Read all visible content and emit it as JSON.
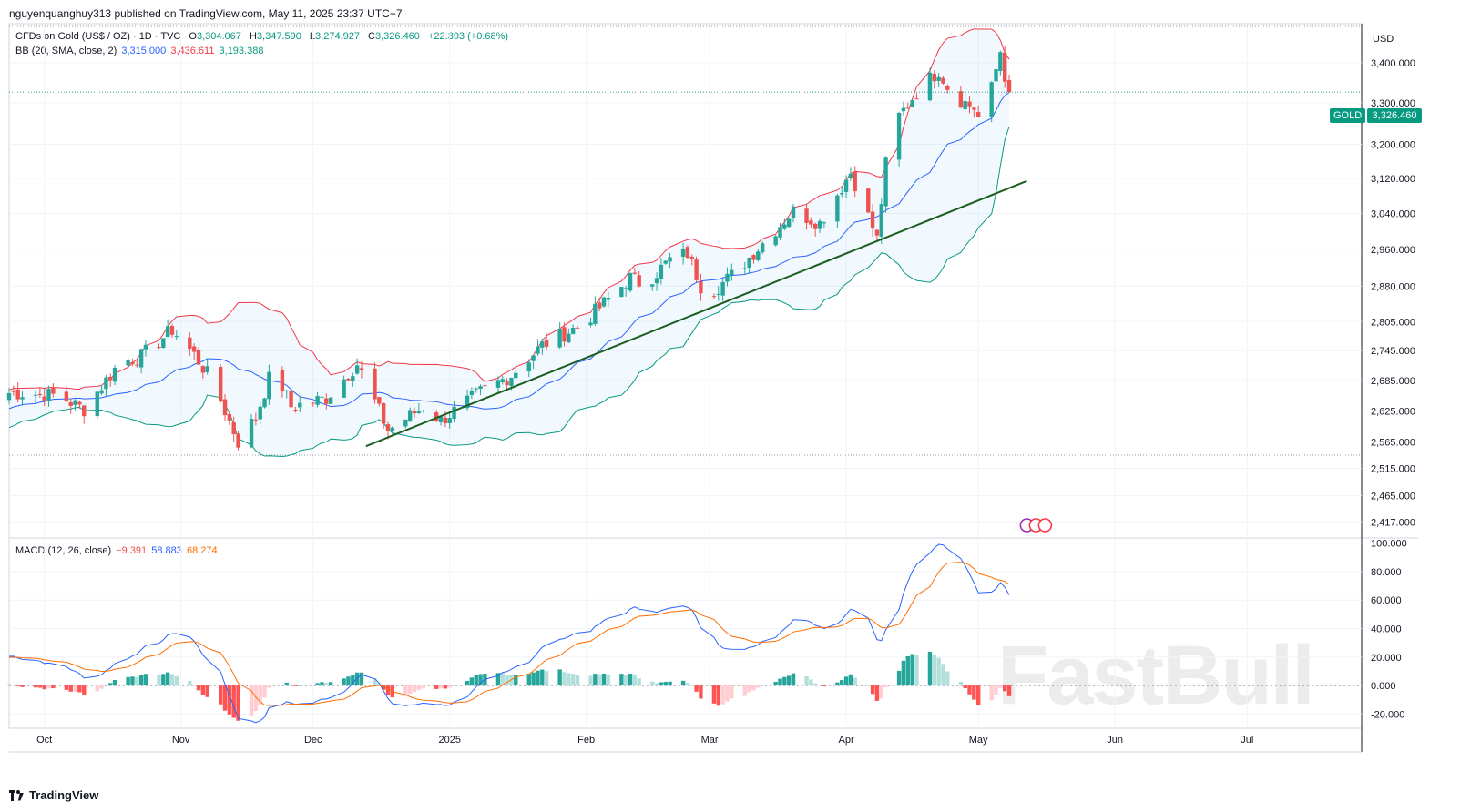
{
  "header": {
    "publisher": "nguyenquanghuy313 published on TradingView.com, May 11, 2025 23:37 UTC+7"
  },
  "legend_main": {
    "symbol": "CFDs on Gold (US$ / OZ) · 1D · TVC",
    "o_label": "O",
    "o_value": "3,304.067",
    "h_label": "H",
    "h_value": "3,347.590",
    "l_label": "L",
    "l_value": "3,274.927",
    "c_label": "C",
    "c_value": "3,326.460",
    "change": "+22.393 (+0.68%)"
  },
  "legend_bb": {
    "label": "BB (20, SMA, close, 2)",
    "basis": "3,315.000",
    "upper": "3,436.611",
    "lower": "3,193.388"
  },
  "legend_macd": {
    "label": "MACD (12, 26, close)",
    "hist": "−9.391",
    "macd": "58.883",
    "signal": "68.274"
  },
  "currency": "USD",
  "price_badge": {
    "symbol": "GOLD",
    "value": "3,326.460"
  },
  "footer": {
    "brand": "TradingView"
  },
  "watermark": "FastBull",
  "colors": {
    "up": "#26a69a",
    "down": "#ef5350",
    "upper": "#f23645",
    "lower": "#089981",
    "basis": "#2962ff",
    "macd": "#2962ff",
    "signal": "#ff6d00",
    "trend": "#1b5e20"
  },
  "chart_data": [
    {
      "type": "candlestick",
      "title": "CFDs on Gold (US$ / OZ) · 1D · TVC",
      "y_axis_ticks": [
        "3,400.000",
        "3,300.000",
        "3,200.000",
        "3,120.000",
        "3,040.000",
        "2,960.000",
        "2,880.000",
        "2,805.000",
        "2,745.000",
        "2,685.000",
        "2,625.000",
        "2,565.000",
        "2,515.000",
        "2,465.000",
        "2,417.000"
      ],
      "x_axis_ticks": [
        "Oct",
        "Nov",
        "Dec",
        "2025",
        "Feb",
        "Mar",
        "Apr",
        "May",
        "Jun",
        "Jul"
      ],
      "ylim": [
        2390,
        3500
      ],
      "scale": "log",
      "last_close": 3326.46,
      "anchors": [
        {
          "date": "Sep 26",
          "close": 2660
        },
        {
          "date": "Oct 4",
          "close": 2655
        },
        {
          "date": "Oct 10",
          "close": 2628
        },
        {
          "date": "Oct 18",
          "close": 2720
        },
        {
          "date": "Oct 23",
          "close": 2734
        },
        {
          "date": "Oct 30",
          "close": 2788
        },
        {
          "date": "Nov 4",
          "close": 2737
        },
        {
          "date": "Nov 8",
          "close": 2685
        },
        {
          "date": "Nov 14",
          "close": 2565
        },
        {
          "date": "Nov 18",
          "close": 2613
        },
        {
          "date": "Nov 22",
          "close": 2713
        },
        {
          "date": "Nov 26",
          "close": 2633
        },
        {
          "date": "Dec 4",
          "close": 2650
        },
        {
          "date": "Dec 11",
          "close": 2718
        },
        {
          "date": "Dec 18",
          "close": 2587
        },
        {
          "date": "Dec 26",
          "close": 2633
        },
        {
          "date": "Dec 30",
          "close": 2606
        },
        {
          "date": "Jan 8",
          "close": 2662
        },
        {
          "date": "Jan 15",
          "close": 2696
        },
        {
          "date": "Jan 22",
          "close": 2756
        },
        {
          "date": "Jan 31",
          "close": 2799
        },
        {
          "date": "Feb 7",
          "close": 2861
        },
        {
          "date": "Feb 11",
          "close": 2898
        },
        {
          "date": "Feb 14",
          "close": 2882
        },
        {
          "date": "Feb 20",
          "close": 2937
        },
        {
          "date": "Feb 24",
          "close": 2951
        },
        {
          "date": "Feb 28",
          "close": 2857
        },
        {
          "date": "Mar 7",
          "close": 2910
        },
        {
          "date": "Mar 14",
          "close": 2984
        },
        {
          "date": "Mar 20",
          "close": 3045
        },
        {
          "date": "Mar 26",
          "close": 3018
        },
        {
          "date": "Apr 2",
          "close": 3134
        },
        {
          "date": "Apr 8",
          "close": 2982
        },
        {
          "date": "Apr 11",
          "close": 3237
        },
        {
          "date": "Apr 17",
          "close": 3327
        },
        {
          "date": "Apr 22",
          "close": 3381
        },
        {
          "date": "Apr 25",
          "close": 3319
        },
        {
          "date": "Apr 30",
          "close": 3288
        },
        {
          "date": "May 2",
          "close": 3240
        },
        {
          "date": "May 6",
          "close": 3430
        },
        {
          "date": "May 8",
          "close": 3305
        },
        {
          "date": "May 9",
          "close": 3326.46
        }
      ]
    },
    {
      "type": "line",
      "title": "MACD (12, 26, close)",
      "y_axis_ticks": [
        "100.000",
        "80.000",
        "60.000",
        "40.000",
        "20.000",
        "0.000",
        "-20.000"
      ],
      "ylim": [
        -30,
        103
      ],
      "series": [
        {
          "name": "MACD",
          "last": 58.883
        },
        {
          "name": "Signal",
          "last": 68.274
        },
        {
          "name": "Histogram",
          "last": -9.391
        }
      ]
    }
  ]
}
